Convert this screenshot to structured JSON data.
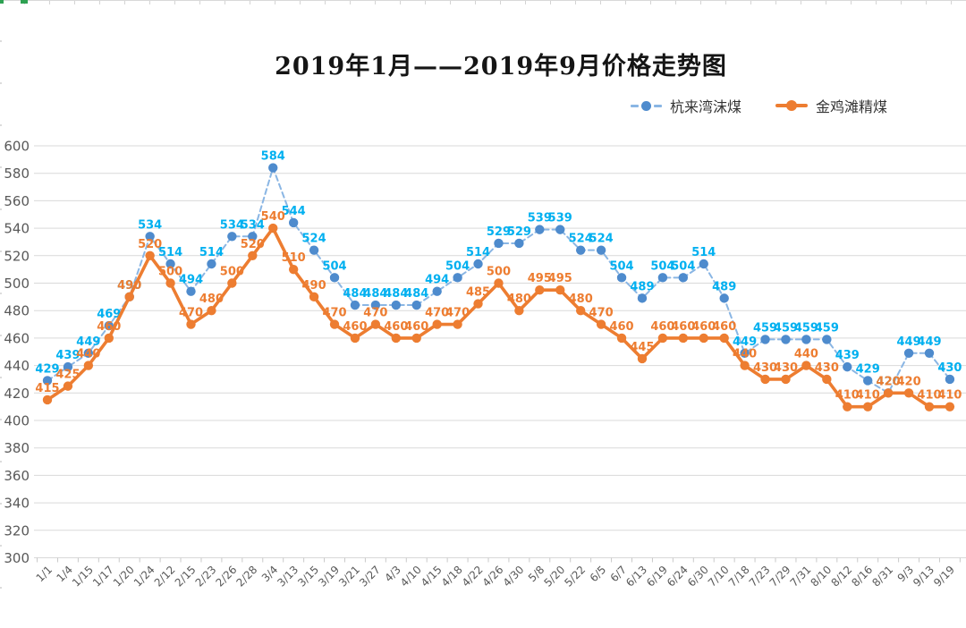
{
  "title": "2019年1月——2019年9月价格走势图",
  "legend": [
    {
      "label": "杭来湾沫煤",
      "key": "hanglaiwan-momei"
    },
    {
      "label": "金鸡滩精煤",
      "key": "jinjitan-jingmei"
    }
  ],
  "colors": {
    "blue_line": "#8ab6e4",
    "blue_marker": "#4e8bcd",
    "blue_label": "#00b0f0",
    "orange": "#ed7d31",
    "gridline": "#d9d9d9",
    "axis_text": "#595959",
    "excel_selection_green": "#2EA152"
  },
  "chart_data": {
    "type": "line",
    "title": "2019年1月——2019年9月价格走势图",
    "xlabel": "",
    "ylabel": "",
    "ylim": [
      300,
      600
    ],
    "ytick_step": 20,
    "grid": "horizontal",
    "legend_position": "top-right",
    "categories": [
      "1/1",
      "1/4",
      "1/15",
      "1/17",
      "1/20",
      "1/24",
      "2/12",
      "2/15",
      "2/23",
      "2/26",
      "2/28",
      "3/4",
      "3/13",
      "3/15",
      "3/19",
      "3/21",
      "3/27",
      "4/3",
      "4/10",
      "4/15",
      "4/18",
      "4/22",
      "4/26",
      "4/30",
      "5/8",
      "5/20",
      "5/22",
      "6/5",
      "6/7",
      "6/13",
      "6/19",
      "6/24",
      "6/30",
      "7/10",
      "7/18",
      "7/23",
      "7/29",
      "7/31",
      "8/10",
      "8/12",
      "8/16",
      "8/31",
      "9/3",
      "9/13",
      "9/19"
    ],
    "series": [
      {
        "name": "杭来湾沫煤",
        "key": "hanglaiwan-momei",
        "style": "dashed",
        "line_color": "#8ab6e4",
        "marker_color": "#4e8bcd",
        "label_color": "#00b0f0",
        "values": [
          429,
          439,
          449,
          469,
          490,
          534,
          514,
          494,
          514,
          534,
          534,
          584,
          544,
          524,
          504,
          484,
          484,
          484,
          484,
          494,
          504,
          514,
          529,
          529,
          539,
          539,
          524,
          524,
          504,
          489,
          504,
          504,
          514,
          489,
          449,
          459,
          459,
          459,
          459,
          439,
          429,
          420,
          449,
          449,
          430
        ]
      },
      {
        "name": "金鸡滩精煤",
        "key": "jinjitan-jingmei",
        "style": "solid",
        "line_color": "#ed7d31",
        "marker_color": "#ed7d31",
        "label_color": "#ed7d31",
        "values": [
          415,
          425,
          440,
          460,
          490,
          520,
          500,
          470,
          480,
          500,
          520,
          540,
          510,
          490,
          470,
          460,
          470,
          460,
          460,
          470,
          470,
          485,
          500,
          480,
          495,
          495,
          480,
          470,
          460,
          445,
          460,
          460,
          460,
          460,
          440,
          430,
          430,
          440,
          430,
          410,
          410,
          420,
          420,
          410,
          410
        ]
      }
    ]
  }
}
